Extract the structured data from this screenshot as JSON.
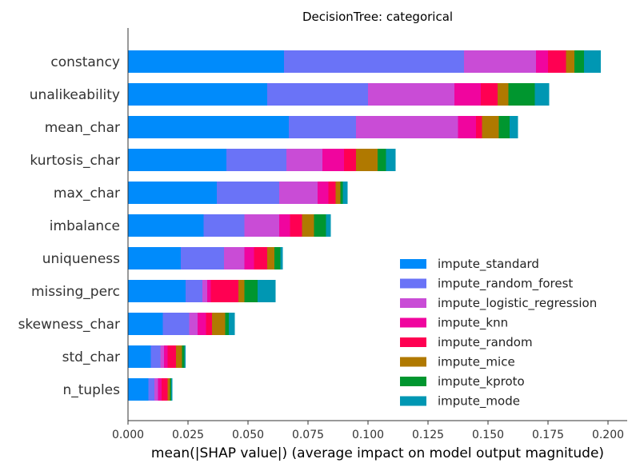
{
  "chart_data": {
    "type": "bar",
    "orientation": "horizontal",
    "stacked": true,
    "title": "DecisionTree: categorical",
    "xlabel": "mean(|SHAP value|) (average impact on model output magnitude)",
    "ylabel": "",
    "xlim": [
      0.0,
      0.208
    ],
    "xticks": [
      "0.000",
      "0.025",
      "0.050",
      "0.075",
      "0.100",
      "0.125",
      "0.150",
      "0.175",
      "0.200"
    ],
    "xtick_values": [
      0.0,
      0.025,
      0.05,
      0.075,
      0.1,
      0.125,
      0.15,
      0.175,
      0.2
    ],
    "grid": false,
    "legend_position": "lower-right",
    "categories": [
      "constancy",
      "unalikeability",
      "mean_char",
      "kurtosis_char",
      "max_char",
      "imbalance",
      "uniqueness",
      "missing_perc",
      "skewness_char",
      "std_char",
      "n_tuples"
    ],
    "series": [
      {
        "name": "impute_standard",
        "color": "#008bfb",
        "values": [
          0.065,
          0.058,
          0.067,
          0.041,
          0.037,
          0.0315,
          0.022,
          0.024,
          0.0145,
          0.0095,
          0.0085
        ]
      },
      {
        "name": "impute_random_forest",
        "color": "#6a73f7",
        "values": [
          0.075,
          0.042,
          0.028,
          0.025,
          0.026,
          0.017,
          0.018,
          0.007,
          0.011,
          0.004,
          0.0025
        ]
      },
      {
        "name": "impute_logistic_regression",
        "color": "#c94cd6",
        "values": [
          0.03,
          0.036,
          0.0425,
          0.015,
          0.016,
          0.0145,
          0.0085,
          0.002,
          0.0035,
          0.0015,
          0.0015
        ]
      },
      {
        "name": "impute_knn",
        "color": "#f0059e",
        "values": [
          0.005,
          0.011,
          0.0075,
          0.009,
          0.0045,
          0.0045,
          0.004,
          0.0015,
          0.0035,
          0.0015,
          0.0015
        ]
      },
      {
        "name": "impute_random",
        "color": "#ff0052",
        "values": [
          0.0075,
          0.007,
          0.0025,
          0.005,
          0.003,
          0.005,
          0.0055,
          0.0115,
          0.0025,
          0.0035,
          0.0025
        ]
      },
      {
        "name": "impute_mice",
        "color": "#b07900",
        "values": [
          0.0035,
          0.0045,
          0.007,
          0.009,
          0.002,
          0.005,
          0.003,
          0.0025,
          0.0055,
          0.0025,
          0.001
        ]
      },
      {
        "name": "impute_kproto",
        "color": "#00962f",
        "values": [
          0.004,
          0.011,
          0.0045,
          0.0035,
          0.001,
          0.005,
          0.0025,
          0.0055,
          0.0015,
          0.001,
          0.0005
        ]
      },
      {
        "name": "impute_mode",
        "color": "#0097b3",
        "values": [
          0.007,
          0.006,
          0.0035,
          0.004,
          0.002,
          0.002,
          0.001,
          0.0075,
          0.0025,
          0.0005,
          0.0005
        ]
      }
    ]
  }
}
